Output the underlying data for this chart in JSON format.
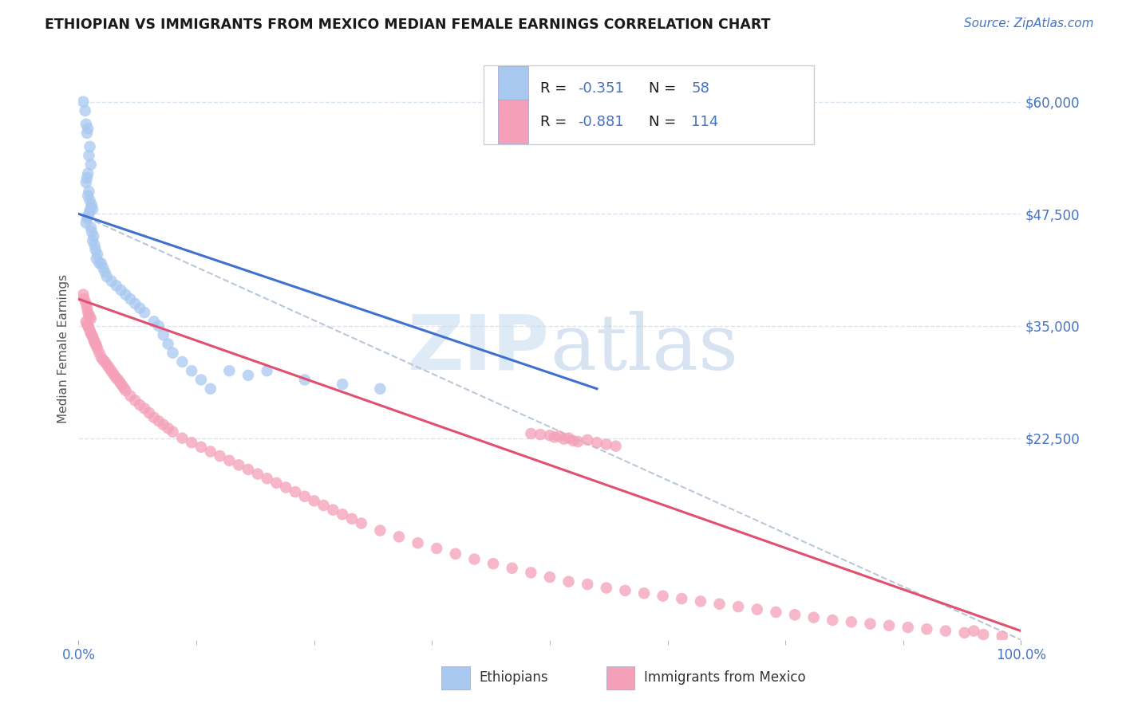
{
  "title": "ETHIOPIAN VS IMMIGRANTS FROM MEXICO MEDIAN FEMALE EARNINGS CORRELATION CHART",
  "source": "Source: ZipAtlas.com",
  "ylabel": "Median Female Earnings",
  "xlim": [
    0,
    1.0
  ],
  "ylim": [
    0,
    65000
  ],
  "color_ethiopian": "#a8c8f0",
  "color_mexico": "#f4a0b8",
  "color_line_ethiopian": "#4070d0",
  "color_line_mexico": "#e05070",
  "color_line_dashed": "#b8c8d8",
  "background": "#ffffff",
  "grid_color": "#d8e4f0",
  "eth_line_x0": 0.0,
  "eth_line_y0": 47500,
  "eth_line_x1": 0.55,
  "eth_line_y1": 28000,
  "mex_line_x0": 0.0,
  "mex_line_y0": 38000,
  "mex_line_x1": 1.0,
  "mex_line_y1": 1000,
  "dash_line_x0": 0.0,
  "dash_line_y0": 47500,
  "dash_line_x1": 1.0,
  "dash_line_y1": 0,
  "ethiopian_x": [
    0.005,
    0.007,
    0.01,
    0.008,
    0.009,
    0.012,
    0.011,
    0.013,
    0.01,
    0.009,
    0.008,
    0.011,
    0.01,
    0.012,
    0.014,
    0.013,
    0.015,
    0.012,
    0.011,
    0.01,
    0.009,
    0.008,
    0.013,
    0.014,
    0.016,
    0.015,
    0.017,
    0.018,
    0.02,
    0.019,
    0.022,
    0.024,
    0.026,
    0.028,
    0.03,
    0.035,
    0.04,
    0.045,
    0.05,
    0.055,
    0.06,
    0.065,
    0.07,
    0.08,
    0.085,
    0.09,
    0.095,
    0.1,
    0.11,
    0.12,
    0.13,
    0.14,
    0.16,
    0.18,
    0.2,
    0.24,
    0.28,
    0.32
  ],
  "ethiopian_y": [
    60000,
    59000,
    57000,
    57500,
    56500,
    55000,
    54000,
    53000,
    52000,
    51500,
    51000,
    50000,
    49500,
    49000,
    48500,
    48200,
    48000,
    47800,
    47500,
    47200,
    47000,
    46500,
    46000,
    45500,
    45000,
    44500,
    44000,
    43500,
    43000,
    42500,
    42000,
    42000,
    41500,
    41000,
    40500,
    40000,
    39500,
    39000,
    38500,
    38000,
    37500,
    37000,
    36500,
    35500,
    35000,
    34000,
    33000,
    32000,
    31000,
    30000,
    29000,
    28000,
    30000,
    29500,
    30000,
    29000,
    28500,
    28000
  ],
  "mexico_x": [
    0.005,
    0.006,
    0.008,
    0.009,
    0.01,
    0.011,
    0.012,
    0.013,
    0.008,
    0.009,
    0.01,
    0.011,
    0.012,
    0.013,
    0.014,
    0.015,
    0.016,
    0.017,
    0.018,
    0.019,
    0.02,
    0.022,
    0.024,
    0.026,
    0.028,
    0.03,
    0.032,
    0.034,
    0.036,
    0.038,
    0.04,
    0.042,
    0.044,
    0.046,
    0.048,
    0.05,
    0.055,
    0.06,
    0.065,
    0.07,
    0.075,
    0.08,
    0.085,
    0.09,
    0.095,
    0.1,
    0.11,
    0.12,
    0.13,
    0.14,
    0.15,
    0.16,
    0.17,
    0.18,
    0.19,
    0.2,
    0.21,
    0.22,
    0.23,
    0.24,
    0.25,
    0.26,
    0.27,
    0.28,
    0.29,
    0.3,
    0.32,
    0.34,
    0.36,
    0.38,
    0.4,
    0.42,
    0.44,
    0.46,
    0.48,
    0.5,
    0.52,
    0.54,
    0.56,
    0.58,
    0.6,
    0.62,
    0.64,
    0.66,
    0.68,
    0.7,
    0.72,
    0.74,
    0.76,
    0.78,
    0.8,
    0.82,
    0.84,
    0.86,
    0.88,
    0.9,
    0.92,
    0.94,
    0.96,
    0.98,
    0.5,
    0.52,
    0.54,
    0.505,
    0.515,
    0.525,
    0.51,
    0.53,
    0.56,
    0.57,
    0.48,
    0.49,
    0.55,
    0.95
  ],
  "mexico_y": [
    38500,
    38000,
    37500,
    37000,
    36500,
    36200,
    36000,
    35800,
    35500,
    35200,
    35000,
    34800,
    34500,
    34200,
    34000,
    33800,
    33500,
    33200,
    33000,
    32800,
    32500,
    32000,
    31500,
    31200,
    31000,
    30700,
    30400,
    30100,
    29800,
    29500,
    29200,
    29000,
    28700,
    28400,
    28100,
    27800,
    27200,
    26700,
    26200,
    25800,
    25300,
    24800,
    24400,
    24000,
    23600,
    23200,
    22500,
    22000,
    21500,
    21000,
    20500,
    20000,
    19500,
    19000,
    18500,
    18000,
    17500,
    17000,
    16500,
    16000,
    15500,
    15000,
    14500,
    14000,
    13500,
    13000,
    12200,
    11500,
    10800,
    10200,
    9600,
    9000,
    8500,
    8000,
    7500,
    7000,
    6500,
    6200,
    5800,
    5500,
    5200,
    4900,
    4600,
    4300,
    4000,
    3700,
    3400,
    3100,
    2800,
    2500,
    2200,
    2000,
    1800,
    1600,
    1400,
    1200,
    1000,
    800,
    600,
    400,
    22800,
    22500,
    22300,
    22600,
    22400,
    22200,
    22700,
    22100,
    21800,
    21600,
    23000,
    22900,
    22000,
    1000
  ]
}
